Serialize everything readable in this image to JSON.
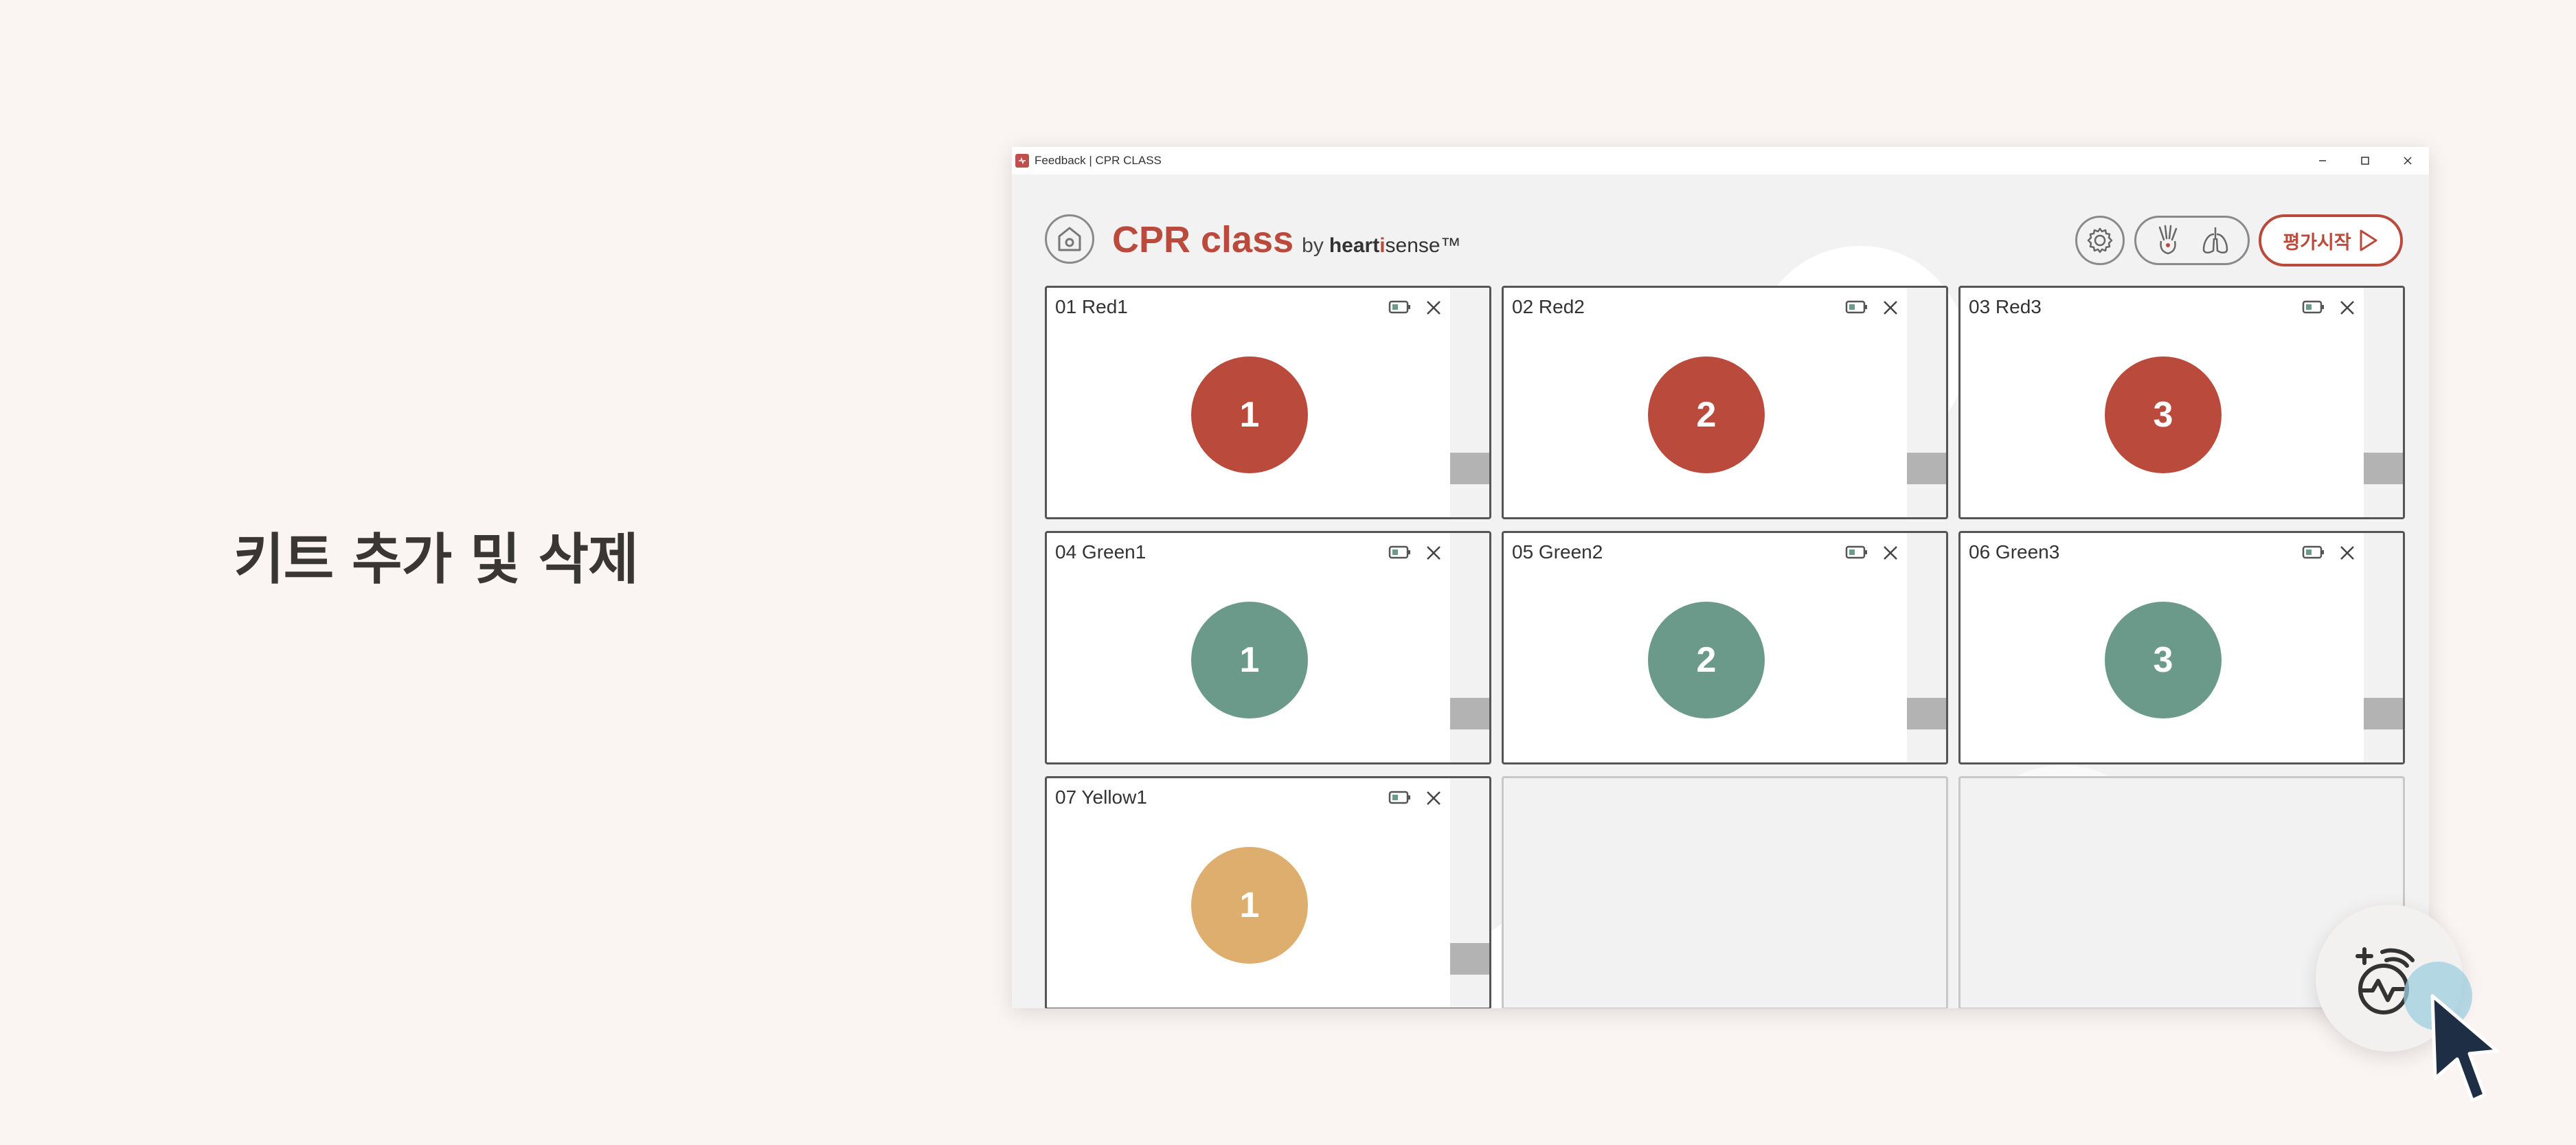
{
  "headline": "키트 추가 및 삭제",
  "window": {
    "title": "Feedback | CPR CLASS",
    "controls": [
      "minimize-icon",
      "maximize-icon",
      "close-icon"
    ]
  },
  "header": {
    "brand_main": "CPR class",
    "brand_by": "by",
    "brand_heart": "heart",
    "brand_i": "i",
    "brand_sense": "sense",
    "brand_tm": "™",
    "start_label": "평가시작"
  },
  "colors": {
    "accent": "#b94a3c",
    "red": "#b94a3c",
    "green": "#6b9a8b",
    "yellow": "#ddae6d",
    "battery_green": "#6b9a8b"
  },
  "kits": [
    {
      "label": "01 Red1",
      "number": "1",
      "color": "red"
    },
    {
      "label": "02 Red2",
      "number": "2",
      "color": "red"
    },
    {
      "label": "03 Red3",
      "number": "3",
      "color": "red"
    },
    {
      "label": "04 Green1",
      "number": "1",
      "color": "green"
    },
    {
      "label": "05 Green2",
      "number": "2",
      "color": "green"
    },
    {
      "label": "06 Green3",
      "number": "3",
      "color": "green"
    },
    {
      "label": "07 Yellow1",
      "number": "1",
      "color": "yellow"
    }
  ],
  "empty_slots": 2,
  "fab_icon": "add-kit-icon"
}
